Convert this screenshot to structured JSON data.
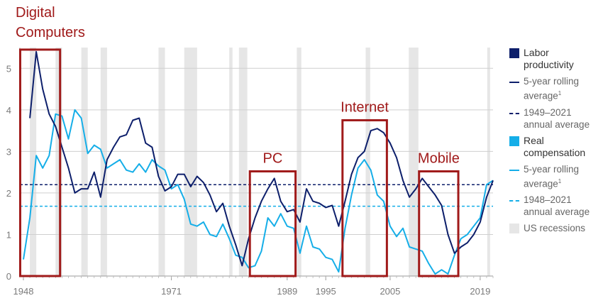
{
  "chart_data": {
    "type": "line",
    "xlim": [
      1948,
      2021
    ],
    "ylim": [
      0,
      5.5
    ],
    "yticks": [
      0,
      1,
      2,
      3,
      4,
      5
    ],
    "xticks": [
      1948,
      1971,
      1989,
      1995,
      2005,
      2019
    ],
    "grid": true,
    "legend_position": "right",
    "colors": {
      "labor": "#0d1f6b",
      "compensation": "#15aee8",
      "recession": "#e6e6e6",
      "era": "#a01a1a"
    },
    "series": [
      {
        "key": "labor",
        "x": [
          1949,
          1950,
          1951,
          1952,
          1953,
          1954,
          1955,
          1956,
          1957,
          1958,
          1959,
          1960,
          1961,
          1962,
          1963,
          1964,
          1965,
          1966,
          1967,
          1968,
          1969,
          1970,
          1971,
          1972,
          1973,
          1974,
          1975,
          1976,
          1977,
          1978,
          1979,
          1980,
          1981,
          1982,
          1983,
          1984,
          1985,
          1986,
          1987,
          1988,
          1989,
          1990,
          1991,
          1992,
          1993,
          1994,
          1995,
          1996,
          1997,
          1998,
          1999,
          2000,
          2001,
          2002,
          2003,
          2004,
          2005,
          2006,
          2007,
          2008,
          2009,
          2010,
          2011,
          2012,
          2013,
          2014,
          2015,
          2016,
          2017,
          2018,
          2019,
          2020,
          2021
        ],
        "values": [
          3.8,
          5.4,
          4.5,
          3.9,
          3.6,
          3.1,
          2.6,
          2.0,
          2.1,
          2.1,
          2.5,
          1.9,
          2.8,
          3.1,
          3.35,
          3.4,
          3.75,
          3.8,
          3.2,
          3.1,
          2.4,
          2.05,
          2.15,
          2.45,
          2.45,
          2.15,
          2.4,
          2.25,
          1.95,
          1.55,
          1.75,
          1.2,
          0.75,
          0.25,
          0.9,
          1.4,
          1.8,
          2.1,
          2.35,
          1.8,
          1.55,
          1.6,
          1.3,
          2.1,
          1.8,
          1.75,
          1.65,
          1.7,
          1.2,
          1.8,
          2.45,
          2.85,
          3.0,
          3.5,
          3.55,
          3.45,
          3.2,
          2.85,
          2.3,
          1.9,
          2.1,
          2.35,
          2.15,
          1.95,
          1.7,
          1.0,
          0.55,
          0.7,
          0.8,
          1.0,
          1.3,
          1.9,
          2.3
        ]
      },
      {
        "key": "compensation",
        "x": [
          1948,
          1949,
          1950,
          1951,
          1952,
          1953,
          1954,
          1955,
          1956,
          1957,
          1958,
          1959,
          1960,
          1961,
          1962,
          1963,
          1964,
          1965,
          1966,
          1967,
          1968,
          1969,
          1970,
          1971,
          1972,
          1973,
          1974,
          1975,
          1976,
          1977,
          1978,
          1979,
          1980,
          1981,
          1982,
          1983,
          1984,
          1985,
          1986,
          1987,
          1988,
          1989,
          1990,
          1991,
          1992,
          1993,
          1994,
          1995,
          1996,
          1997,
          1998,
          1999,
          2000,
          2001,
          2002,
          2003,
          2004,
          2005,
          2006,
          2007,
          2008,
          2009,
          2010,
          2011,
          2012,
          2013,
          2014,
          2015,
          2016,
          2017,
          2018,
          2019,
          2020,
          2021
        ],
        "values": [
          0.4,
          1.4,
          2.9,
          2.6,
          2.9,
          3.9,
          3.85,
          3.3,
          4.0,
          3.8,
          2.95,
          3.15,
          3.05,
          2.6,
          2.7,
          2.8,
          2.55,
          2.5,
          2.7,
          2.5,
          2.8,
          2.65,
          2.55,
          2.1,
          2.2,
          1.85,
          1.25,
          1.2,
          1.3,
          1.0,
          0.95,
          1.25,
          0.9,
          0.5,
          0.45,
          0.2,
          0.25,
          0.6,
          1.4,
          1.2,
          1.5,
          1.2,
          1.15,
          0.55,
          1.2,
          0.7,
          0.65,
          0.45,
          0.4,
          0.1,
          1.15,
          1.95,
          2.6,
          2.8,
          2.55,
          1.95,
          1.8,
          1.2,
          0.95,
          1.15,
          0.7,
          0.65,
          0.6,
          0.3,
          0.05,
          0.15,
          0.05,
          0.5,
          0.9,
          1.0,
          1.2,
          1.4,
          2.2,
          2.3
        ]
      }
    ],
    "averages": [
      {
        "key": "labor",
        "value": 2.2
      },
      {
        "key": "compensation",
        "value": 1.68
      }
    ],
    "recessions": [
      [
        1949,
        1950
      ],
      [
        1953,
        1954
      ],
      [
        1957,
        1958
      ],
      [
        1960,
        1961
      ],
      [
        1969,
        1970
      ],
      [
        1973,
        1975
      ],
      [
        1980,
        1980.5
      ],
      [
        1981.5,
        1982.8
      ],
      [
        1990.5,
        1991.2
      ],
      [
        2001.2,
        2001.9
      ],
      [
        2007.9,
        2009.4
      ],
      [
        2020.1,
        2020.5
      ]
    ],
    "eras": [
      {
        "label": "Digital\nComputers",
        "x0": 1947.5,
        "x1": 1953.7,
        "y0": 0,
        "y1": 5.45
      },
      {
        "label": "PC",
        "x0": 1983.2,
        "x1": 1990.3,
        "y0": 0,
        "y1": 2.52
      },
      {
        "label": "Internet",
        "x0": 1997.6,
        "x1": 2004.5,
        "y0": 0,
        "y1": 3.75
      },
      {
        "label": "Mobile",
        "x0": 2009.5,
        "x1": 2015.6,
        "y0": 0,
        "y1": 2.52
      }
    ],
    "legend": [
      {
        "kind": "swatch",
        "color_key": "labor",
        "text": "Labor\nproductivity",
        "sub": false
      },
      {
        "kind": "line",
        "color_key": "labor",
        "text": "5-year rolling\naverage",
        "sup": "1",
        "sub": true
      },
      {
        "kind": "dash",
        "color_key": "labor",
        "text": "1949–2021\nannual average",
        "sub": true
      },
      {
        "kind": "swatch",
        "color_key": "compensation",
        "text": "Real\ncompensation",
        "sub": false
      },
      {
        "kind": "line",
        "color_key": "compensation",
        "text": "5-year rolling\naverage",
        "sup": "1",
        "sub": true
      },
      {
        "kind": "dash",
        "color_key": "compensation",
        "text": "1948–2021\nannual average",
        "sub": true
      },
      {
        "kind": "swatch",
        "color_key": "recession",
        "text": "US recessions",
        "sub": true
      }
    ]
  }
}
